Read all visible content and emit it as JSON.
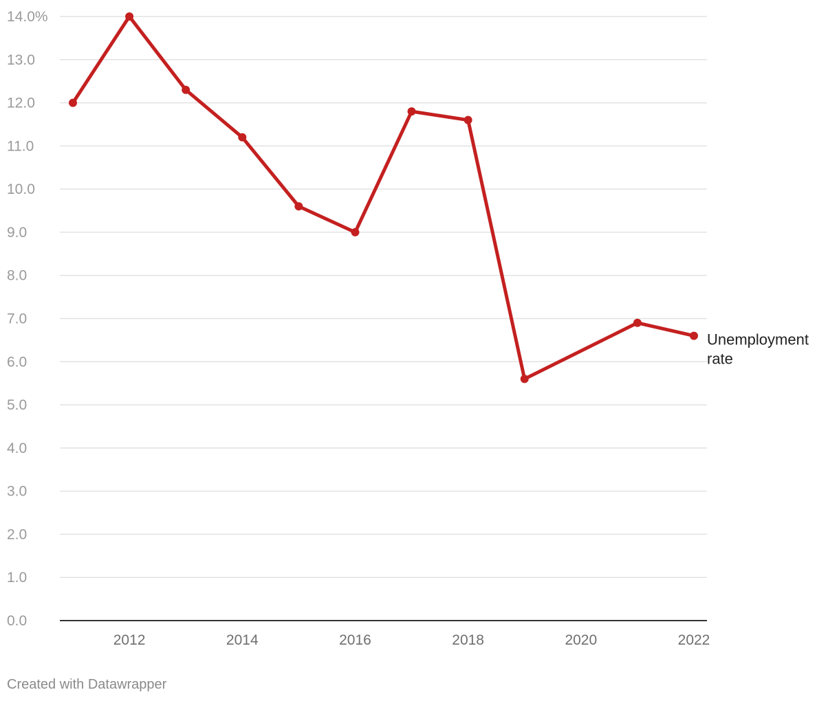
{
  "chart_data": {
    "type": "line",
    "title": "",
    "xlabel": "",
    "ylabel": "",
    "xlim": [
      2011,
      2022
    ],
    "ylim": [
      0,
      14
    ],
    "y_ticks": [
      0,
      1,
      2,
      3,
      4,
      5,
      6,
      7,
      8,
      9,
      10,
      11,
      12,
      13,
      14
    ],
    "y_tick_labels": [
      "0.0",
      "1.0",
      "2.0",
      "3.0",
      "4.0",
      "5.0",
      "6.0",
      "7.0",
      "8.0",
      "9.0",
      "10.0",
      "11.0",
      "12.0",
      "13.0",
      "14.0%"
    ],
    "x_ticks": [
      2012,
      2014,
      2016,
      2018,
      2020,
      2022
    ],
    "x_tick_labels": [
      "2012",
      "2014",
      "2016",
      "2018",
      "2020",
      "2022"
    ],
    "grid": true,
    "series": [
      {
        "name": "Unemployment rate",
        "label_lines": [
          "Unemployment",
          "rate"
        ],
        "color": "#c42020",
        "points": [
          {
            "x": 2011,
            "y": 12.0
          },
          {
            "x": 2012,
            "y": 14.0
          },
          {
            "x": 2013,
            "y": 12.3
          },
          {
            "x": 2014,
            "y": 11.2
          },
          {
            "x": 2015,
            "y": 9.6
          },
          {
            "x": 2016,
            "y": 9.0
          },
          {
            "x": 2017,
            "y": 11.8
          },
          {
            "x": 2018,
            "y": 11.6
          },
          {
            "x": 2019,
            "y": 5.6
          },
          {
            "x": 2021,
            "y": 6.9
          },
          {
            "x": 2022,
            "y": 6.6
          }
        ]
      }
    ]
  },
  "footer": {
    "credit": "Created with Datawrapper"
  }
}
